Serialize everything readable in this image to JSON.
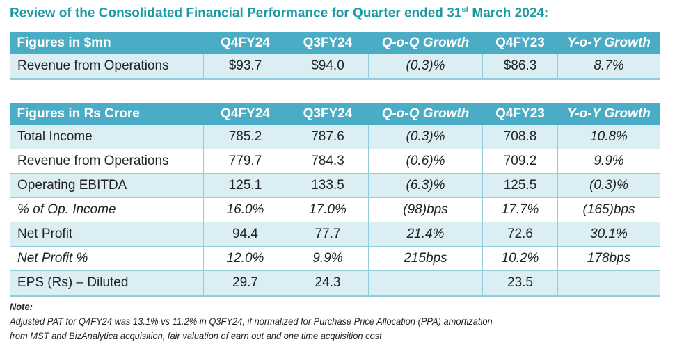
{
  "title": {
    "text": "Review of the Consolidated Financial Performance for Quarter ended 31",
    "sup": "st",
    "suffix": " March 2024:"
  },
  "colors": {
    "header_bg": "#4bacc6",
    "stripe": "#daeef3",
    "title": "#1a9aa6"
  },
  "table1": {
    "headers": [
      "Figures in $mn",
      "Q4FY24",
      "Q3FY24",
      "Q-o-Q Growth",
      "Q4FY23",
      "Y-o-Y Growth"
    ],
    "rows": [
      [
        "Revenue from Operations",
        "$93.7",
        "$94.0",
        "(0.3)%",
        "$86.3",
        "8.7%"
      ]
    ]
  },
  "table2": {
    "headers": [
      "Figures in Rs Crore",
      "Q4FY24",
      "Q3FY24",
      "Q-o-Q Growth",
      "Q4FY23",
      "Y-o-Y Growth"
    ],
    "rows": [
      [
        "Total Income",
        "785.2",
        "787.6",
        "(0.3)%",
        "708.8",
        "10.8%"
      ],
      [
        "Revenue from Operations",
        "779.7",
        "784.3",
        "(0.6)%",
        "709.2",
        "9.9%"
      ],
      [
        "Operating EBITDA",
        "125.1",
        "133.5",
        "(6.3)%",
        "125.5",
        "(0.3)%"
      ],
      [
        "% of Op. Income",
        "16.0%",
        "17.0%",
        "(98)bps",
        "17.7%",
        "(165)bps"
      ],
      [
        "Net Profit",
        "94.4",
        "77.7",
        "21.4%",
        "72.6",
        "30.1%"
      ],
      [
        "Net Profit %",
        "12.0%",
        "9.9%",
        "215bps",
        "10.2%",
        "178bps"
      ],
      [
        "EPS (Rs) – Diluted",
        "29.7",
        "24.3",
        "",
        "23.5",
        ""
      ]
    ]
  },
  "note": {
    "label": "Note:",
    "line1": "Adjusted PAT for Q4FY24 was 13.1% vs 11.2% in Q3FY24, if normalized for Purchase Price Allocation (PPA) amortization",
    "line2": "from MST and BizAnalytica acquisition, fair valuation of earn out and one time acquisition cost"
  }
}
